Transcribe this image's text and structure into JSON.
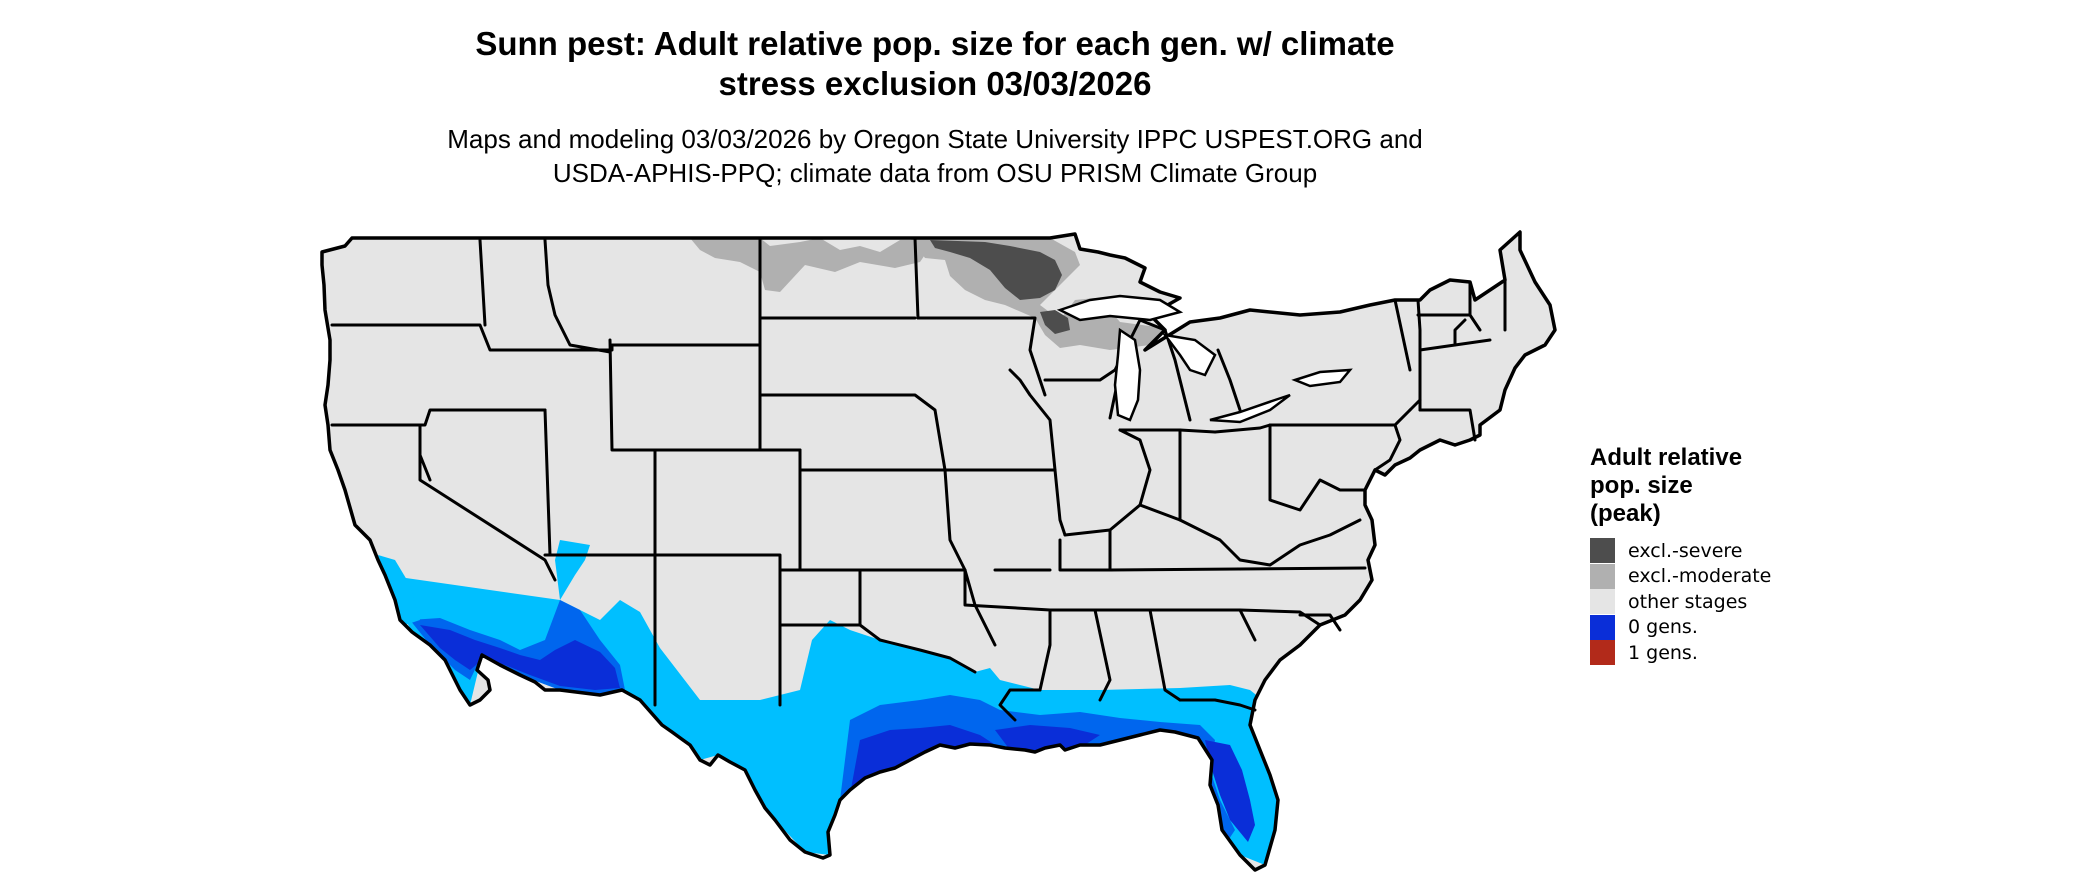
{
  "title": {
    "line1": "Sunn pest: Adult relative pop. size for each gen. w/ climate",
    "line2": "stress exclusion 03/03/2026"
  },
  "subtitle": {
    "line1": "Maps and modeling 03/03/2026 by Oregon State University IPPC USPEST.ORG and",
    "line2": "USDA-APHIS-PPQ; climate data from OSU PRISM Climate Group"
  },
  "legend": {
    "title_lines": [
      "Adult relative",
      "pop. size",
      "(peak)"
    ],
    "items": [
      {
        "label": "excl.-severe",
        "color": "#4d4d4d"
      },
      {
        "label": "excl.-moderate",
        "color": "#b0b0b0"
      },
      {
        "label": "other stages",
        "color": "#e5e5e5"
      },
      {
        "label": "0 gens.",
        "color": "#0a2ed8"
      },
      {
        "label": "1 gens.",
        "color": "#b22a1a"
      }
    ]
  },
  "map": {
    "colors": {
      "land": "#e5e5e5",
      "border": "#000000",
      "light_blue": "#00bfff",
      "mid_blue": "#0066ee",
      "dark_blue": "#0a2ed8",
      "excl_moderate": "#b0b0b0",
      "excl_severe": "#4d4d4d"
    }
  }
}
